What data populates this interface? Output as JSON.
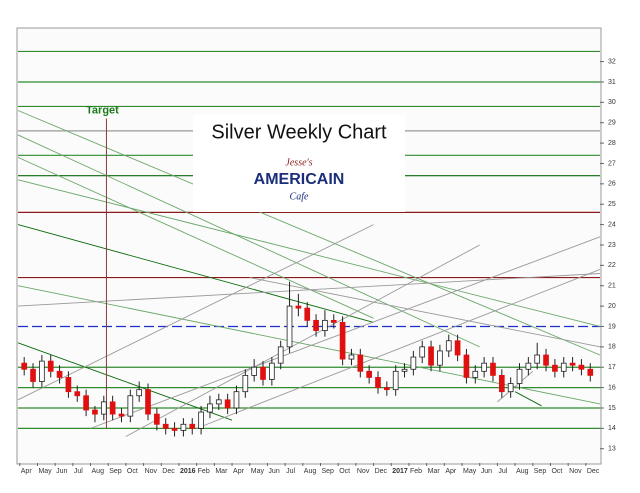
{
  "chart_data": {
    "type": "candlestick",
    "title": "Silver Weekly Chart",
    "logo": {
      "top": "Jesse's",
      "middle": "AMERICAIN",
      "bottom": "Cafe"
    },
    "annotation": {
      "text": "Target",
      "x": 4.9,
      "y": 29.6
    },
    "up_color": "#ffffff",
    "down_color": "#e01010",
    "xlim": [
      -0.1,
      32.8
    ],
    "ylim": [
      12.3,
      33.6
    ],
    "xticks": [
      {
        "value": 0,
        "label": "Apr"
      },
      {
        "value": 1,
        "label": "May"
      },
      {
        "value": 2,
        "label": "Jun"
      },
      {
        "value": 3,
        "label": "Jul"
      },
      {
        "value": 4,
        "label": "Aug"
      },
      {
        "value": 5,
        "label": "Sep"
      },
      {
        "value": 6,
        "label": "Oct"
      },
      {
        "value": 7,
        "label": "Nov"
      },
      {
        "value": 8,
        "label": "Dec"
      },
      {
        "value": 9,
        "label": "2016"
      },
      {
        "value": 10,
        "label": "Feb"
      },
      {
        "value": 11,
        "label": "Mar"
      },
      {
        "value": 12,
        "label": "Apr"
      },
      {
        "value": 13,
        "label": "May"
      },
      {
        "value": 14,
        "label": "Jun"
      },
      {
        "value": 15,
        "label": "Jul"
      },
      {
        "value": 16,
        "label": "Aug"
      },
      {
        "value": 17,
        "label": "Sep"
      },
      {
        "value": 18,
        "label": "Oct"
      },
      {
        "value": 19,
        "label": "Nov"
      },
      {
        "value": 20,
        "label": "Dec"
      },
      {
        "value": 21,
        "label": "2017"
      },
      {
        "value": 22,
        "label": "Feb"
      },
      {
        "value": 23,
        "label": "Mar"
      },
      {
        "value": 24,
        "label": "Apr"
      },
      {
        "value": 25,
        "label": "May"
      },
      {
        "value": 26,
        "label": "Jun"
      },
      {
        "value": 27,
        "label": "Jul"
      },
      {
        "value": 28,
        "label": "Aug"
      },
      {
        "value": 29,
        "label": "Sep"
      },
      {
        "value": 30,
        "label": "Oct"
      },
      {
        "value": 31,
        "label": "Nov"
      },
      {
        "value": 32,
        "label": "Dec"
      }
    ],
    "yticks": [
      13,
      14,
      15,
      16,
      17,
      18,
      19,
      20,
      21,
      22,
      23,
      24,
      25,
      26,
      27,
      28,
      29,
      30,
      31,
      32
    ],
    "x": [
      0.25,
      0.75,
      1.25,
      1.75,
      2.25,
      2.75,
      3.25,
      3.75,
      4.25,
      4.75,
      5.25,
      5.75,
      6.25,
      6.75,
      7.25,
      7.75,
      8.25,
      8.75,
      9.25,
      9.75,
      10.25,
      10.75,
      11.25,
      11.75,
      12.25,
      12.75,
      13.25,
      13.75,
      14.25,
      14.75,
      15.25,
      15.75,
      16.25,
      16.75,
      17.25,
      17.75,
      18.25,
      18.75,
      19.25,
      19.75,
      20.25,
      20.75,
      21.25,
      21.75,
      22.25,
      22.75,
      23.25,
      23.75,
      24.25,
      24.75,
      25.25,
      25.75,
      26.25,
      26.75,
      27.25,
      27.75,
      28.25,
      28.75,
      29.25,
      29.75,
      30.25,
      30.75,
      31.25,
      31.75,
      32.25
    ],
    "ohlc": [
      [
        17.2,
        17.5,
        16.6,
        16.9
      ],
      [
        16.9,
        17.2,
        16.0,
        16.3
      ],
      [
        16.3,
        17.6,
        16.0,
        17.3
      ],
      [
        17.3,
        17.6,
        16.5,
        16.8
      ],
      [
        16.8,
        17.1,
        16.2,
        16.5
      ],
      [
        16.5,
        16.8,
        15.5,
        15.8
      ],
      [
        15.8,
        16.1,
        15.3,
        15.6
      ],
      [
        15.6,
        15.9,
        14.6,
        14.9
      ],
      [
        14.9,
        15.1,
        14.3,
        14.7
      ],
      [
        14.7,
        15.6,
        14.4,
        15.3
      ],
      [
        15.3,
        15.6,
        14.4,
        14.7
      ],
      [
        14.7,
        15.0,
        14.3,
        14.6
      ],
      [
        14.6,
        15.9,
        14.3,
        15.6
      ],
      [
        15.6,
        16.3,
        15.3,
        15.9
      ],
      [
        15.9,
        16.2,
        14.4,
        14.7
      ],
      [
        14.7,
        15.0,
        13.9,
        14.2
      ],
      [
        14.2,
        14.5,
        13.7,
        14.0
      ],
      [
        14.0,
        14.3,
        13.6,
        13.9
      ],
      [
        13.9,
        14.5,
        13.6,
        14.2
      ],
      [
        14.2,
        14.5,
        13.7,
        14.0
      ],
      [
        14.0,
        15.1,
        13.7,
        14.8
      ],
      [
        14.8,
        15.6,
        14.5,
        15.2
      ],
      [
        15.2,
        15.7,
        14.9,
        15.4
      ],
      [
        15.4,
        15.7,
        14.7,
        15.0
      ],
      [
        15.0,
        16.1,
        14.7,
        15.8
      ],
      [
        15.8,
        16.9,
        15.5,
        16.6
      ],
      [
        16.6,
        17.4,
        16.3,
        17.0
      ],
      [
        17.0,
        17.3,
        16.1,
        16.4
      ],
      [
        16.4,
        17.5,
        16.1,
        17.2
      ],
      [
        17.2,
        18.3,
        16.9,
        18.0
      ],
      [
        18.0,
        21.2,
        17.7,
        20.0
      ],
      [
        20.0,
        20.6,
        19.5,
        19.9
      ],
      [
        19.9,
        20.2,
        19.0,
        19.3
      ],
      [
        19.3,
        19.6,
        18.5,
        18.8
      ],
      [
        18.8,
        19.8,
        18.5,
        19.3
      ],
      [
        19.3,
        19.6,
        18.9,
        19.2
      ],
      [
        19.2,
        19.5,
        17.1,
        17.4
      ],
      [
        17.4,
        17.9,
        17.1,
        17.6
      ],
      [
        17.6,
        17.9,
        16.5,
        16.8
      ],
      [
        16.8,
        17.1,
        16.2,
        16.5
      ],
      [
        16.5,
        16.8,
        15.7,
        16.0
      ],
      [
        16.0,
        16.3,
        15.6,
        15.9
      ],
      [
        15.9,
        17.1,
        15.6,
        16.8
      ],
      [
        16.8,
        17.2,
        16.5,
        16.9
      ],
      [
        16.9,
        17.8,
        16.6,
        17.5
      ],
      [
        17.5,
        18.3,
        17.2,
        18.0
      ],
      [
        18.0,
        18.3,
        16.8,
        17.1
      ],
      [
        17.1,
        18.1,
        16.8,
        17.8
      ],
      [
        17.8,
        18.6,
        17.5,
        18.3
      ],
      [
        18.3,
        18.6,
        17.3,
        17.6
      ],
      [
        17.6,
        17.9,
        16.2,
        16.5
      ],
      [
        16.5,
        17.1,
        16.2,
        16.8
      ],
      [
        16.8,
        17.5,
        16.5,
        17.2
      ],
      [
        17.2,
        17.5,
        16.3,
        16.6
      ],
      [
        16.6,
        16.9,
        15.5,
        15.8
      ],
      [
        15.8,
        16.5,
        15.5,
        16.2
      ],
      [
        16.2,
        17.2,
        15.9,
        16.9
      ],
      [
        16.9,
        17.5,
        16.6,
        17.2
      ],
      [
        17.2,
        18.2,
        16.9,
        17.6
      ],
      [
        17.6,
        17.9,
        16.8,
        17.1
      ],
      [
        17.1,
        17.4,
        16.5,
        16.8
      ],
      [
        16.8,
        17.5,
        16.5,
        17.2
      ],
      [
        17.2,
        17.5,
        16.8,
        17.1
      ],
      [
        17.1,
        17.4,
        16.6,
        16.9
      ],
      [
        16.9,
        17.2,
        16.3,
        16.6
      ]
    ],
    "hlines": [
      {
        "value": 32.5,
        "color": "#2e8b2e"
      },
      {
        "value": 31.0,
        "color": "#2e8b2e"
      },
      {
        "value": 29.8,
        "color": "#2e8b2e"
      },
      {
        "value": 28.6,
        "color": "#9a9a9a"
      },
      {
        "value": 27.4,
        "color": "#2e8b2e"
      },
      {
        "value": 26.4,
        "color": "#0b6b0b"
      },
      {
        "value": 24.6,
        "color": "#8b1a1a"
      },
      {
        "value": 21.4,
        "color": "#8b1a1a"
      },
      {
        "value": 19.0,
        "color": "#1a2ecc",
        "dash": true
      },
      {
        "value": 17.0,
        "color": "#2e8b2e"
      },
      {
        "value": 16.0,
        "color": "#2e8b2e"
      },
      {
        "value": 15.0,
        "color": "#2e8b2e"
      },
      {
        "value": 14.0,
        "color": "#2e8b2e"
      }
    ],
    "trendlines": [
      {
        "points": [
          -0.1,
          29.6,
          32.8,
          17.6
        ],
        "color": "#6aa86a"
      },
      {
        "points": [
          -0.1,
          28.4,
          26,
          18.0
        ],
        "color": "#6aa86a"
      },
      {
        "points": [
          -0.1,
          27.3,
          20,
          19.4
        ],
        "color": "#6aa86a"
      },
      {
        "points": [
          -0.1,
          26.2,
          32.8,
          19.0
        ],
        "color": "#6aa86a"
      },
      {
        "points": [
          -0.1,
          24.0,
          20,
          19.2
        ],
        "color": "#0b6b0b"
      },
      {
        "points": [
          -0.1,
          18.2,
          12,
          14.4
        ],
        "color": "#0b6b0b"
      },
      {
        "points": [
          -0.1,
          21.0,
          32.8,
          15.2
        ],
        "color": "#6aa86a"
      },
      {
        "points": [
          4,
          14.0,
          32.8,
          23.4
        ],
        "color": "#9a9a9a"
      },
      {
        "points": [
          -0.1,
          15.4,
          20,
          24.0
        ],
        "color": "#9a9a9a"
      },
      {
        "points": [
          6,
          13.6,
          26,
          23.0
        ],
        "color": "#9a9a9a"
      },
      {
        "points": [
          10,
          14.0,
          32.8,
          21.8
        ],
        "color": "#9a9a9a"
      },
      {
        "points": [
          13,
          21.4,
          32.8,
          18.0
        ],
        "color": "#9a9a9a"
      },
      {
        "points": [
          -0.1,
          20.0,
          32.8,
          21.6
        ],
        "color": "#9a9a9a"
      },
      {
        "points": [
          27,
          15.3,
          29,
          16.8
        ],
        "color": "#9a9a9a"
      },
      {
        "points": [
          28,
          15.8,
          29.5,
          15.1
        ],
        "color": "#0b6b0b"
      }
    ]
  }
}
